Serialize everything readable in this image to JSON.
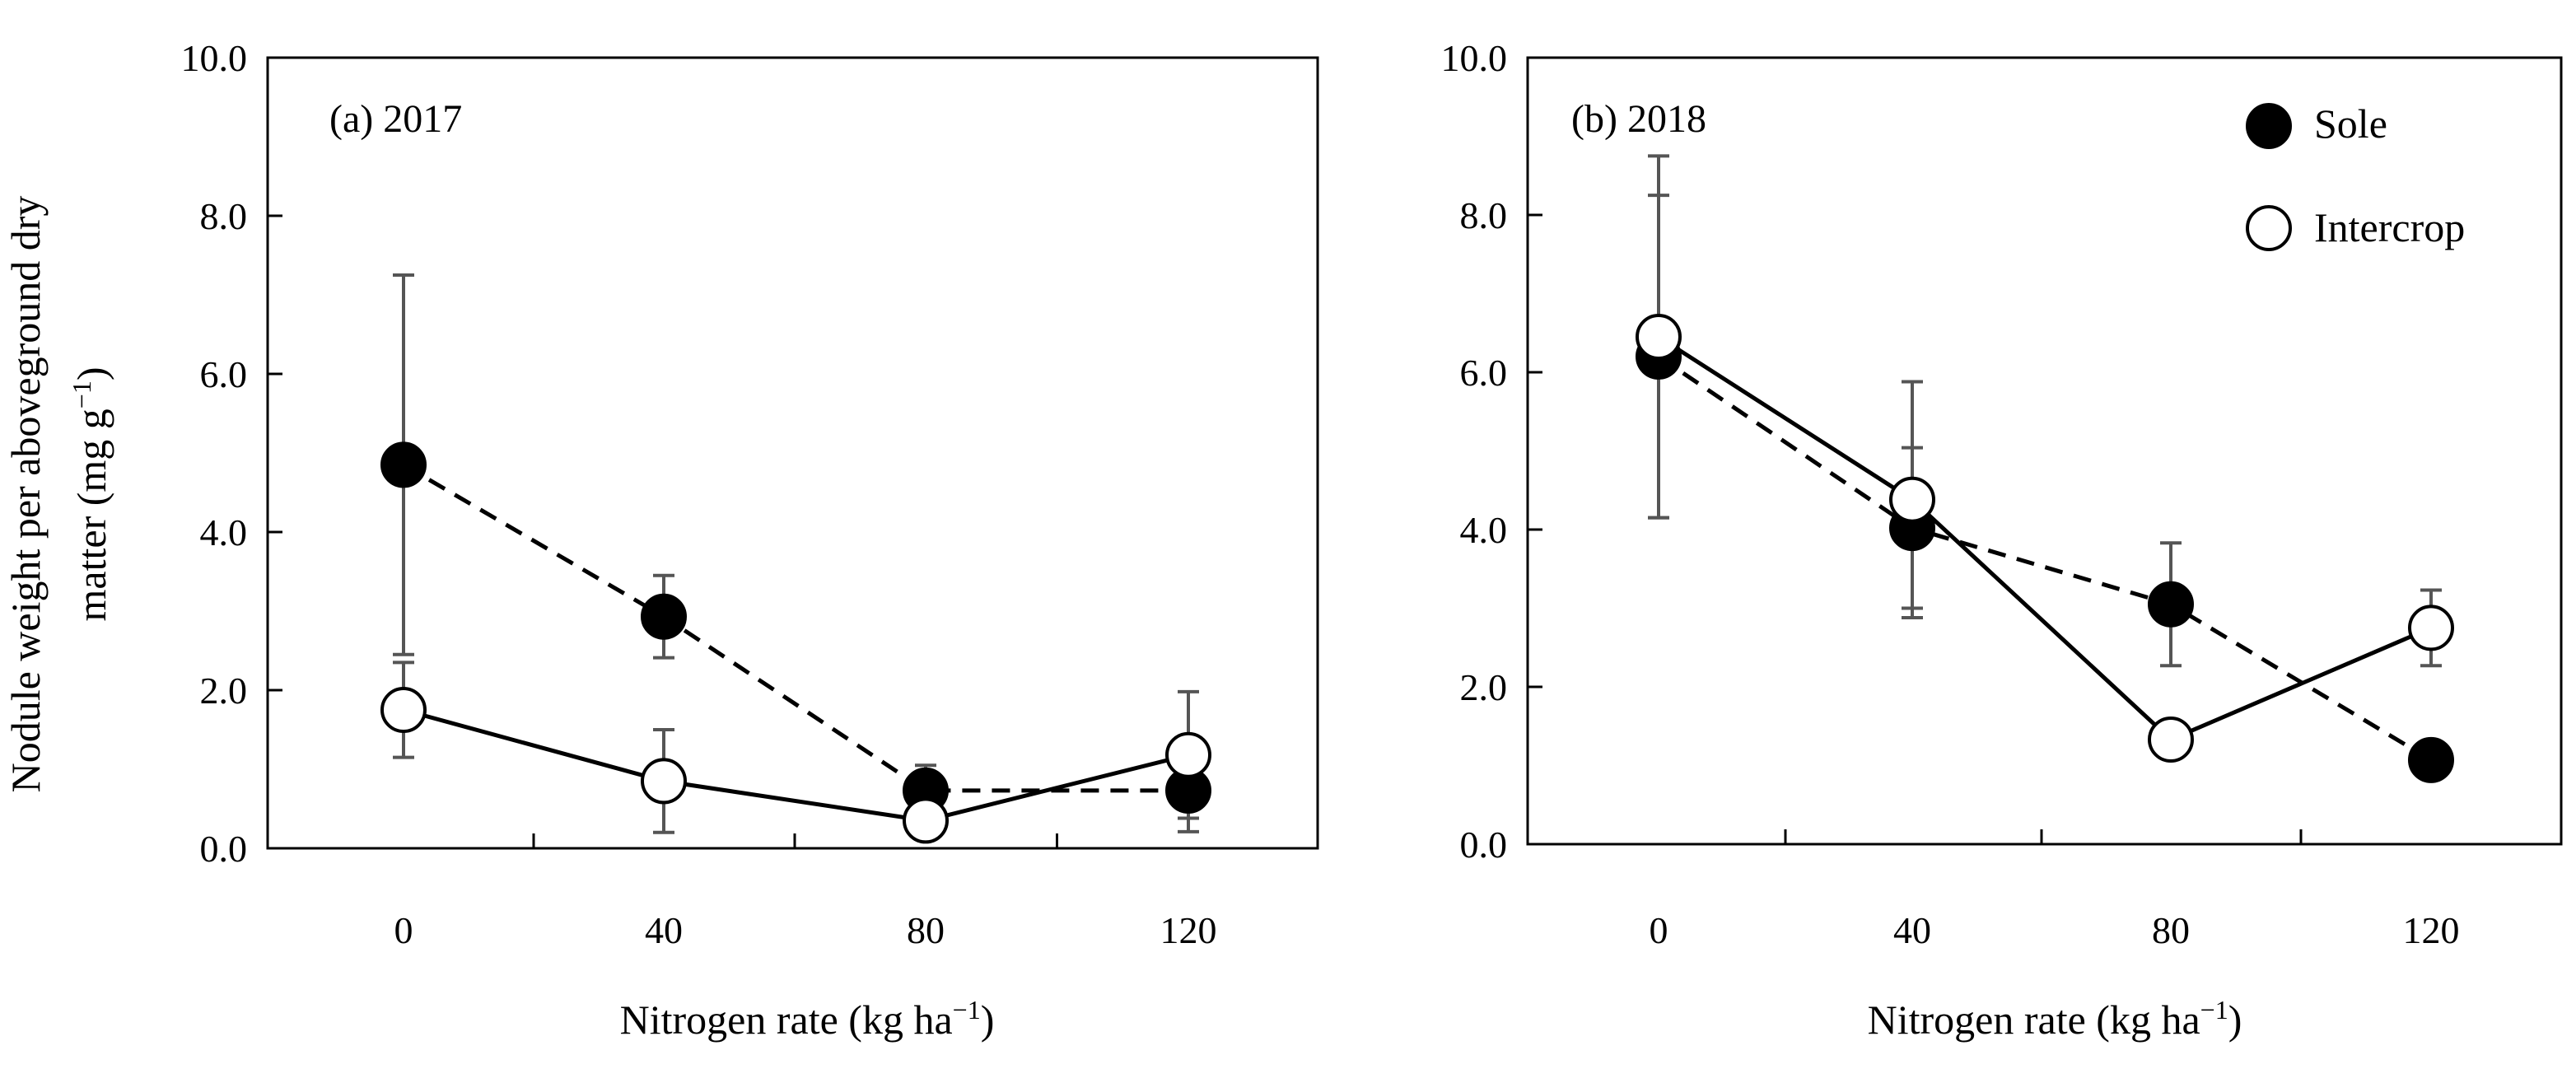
{
  "ylabel_line1": "Nodule weight per aboveground dry",
  "ylabel_line2": "matter  (mg g",
  "ylabel_sup": "−1",
  "ylabel_close": ")",
  "legend": {
    "sole": "Sole",
    "intercrop": "Intercrop"
  },
  "chart_data": [
    {
      "type": "line",
      "title": "(a) 2017",
      "xlabel": "Nitrogen rate (kg ha",
      "xlabel_sup": "−1",
      "xlabel_close": ")",
      "ylabel": "Nodule weight per aboveground dry matter (mg g−1)",
      "x": [
        0,
        40,
        80,
        120
      ],
      "xticklabels": [
        "0",
        "40",
        "80",
        "120"
      ],
      "ylim": [
        0,
        10
      ],
      "yticks": [
        0,
        2,
        4,
        6,
        8,
        10
      ],
      "yticklabels": [
        "0.0",
        "2.0",
        "4.0",
        "6.0",
        "8.0",
        "10.0"
      ],
      "series": [
        {
          "name": "Sole",
          "marker": "filled-circle",
          "line": "dashed",
          "values": [
            4.85,
            2.93,
            0.73,
            0.73
          ],
          "errors": [
            2.4,
            0.52,
            0.32,
            0.52
          ]
        },
        {
          "name": "Intercrop",
          "marker": "open-circle",
          "line": "solid",
          "values": [
            1.75,
            0.85,
            0.35,
            1.18
          ],
          "errors": [
            0.6,
            0.65,
            0.2,
            0.8
          ]
        }
      ]
    },
    {
      "type": "line",
      "title": "(b) 2018",
      "xlabel": "Nitrogen rate (kg ha",
      "xlabel_sup": "−1",
      "xlabel_close": ")",
      "ylabel": "",
      "x": [
        0,
        40,
        80,
        120
      ],
      "xticklabels": [
        "0",
        "40",
        "80",
        "120"
      ],
      "ylim": [
        0,
        10
      ],
      "yticks": [
        0,
        2,
        4,
        6,
        8,
        10
      ],
      "yticklabels": [
        "0.0",
        "2.0",
        "4.0",
        "6.0",
        "8.0",
        "10.0"
      ],
      "series": [
        {
          "name": "Sole",
          "marker": "filled-circle",
          "line": "dashed",
          "values": [
            6.2,
            4.02,
            3.05,
            1.07
          ],
          "errors": [
            2.05,
            1.02,
            0.78,
            0
          ]
        },
        {
          "name": "Intercrop",
          "marker": "open-circle",
          "line": "solid",
          "values": [
            6.45,
            4.38,
            1.33,
            2.75
          ],
          "errors": [
            2.3,
            1.5,
            0,
            0.48
          ]
        }
      ]
    }
  ]
}
